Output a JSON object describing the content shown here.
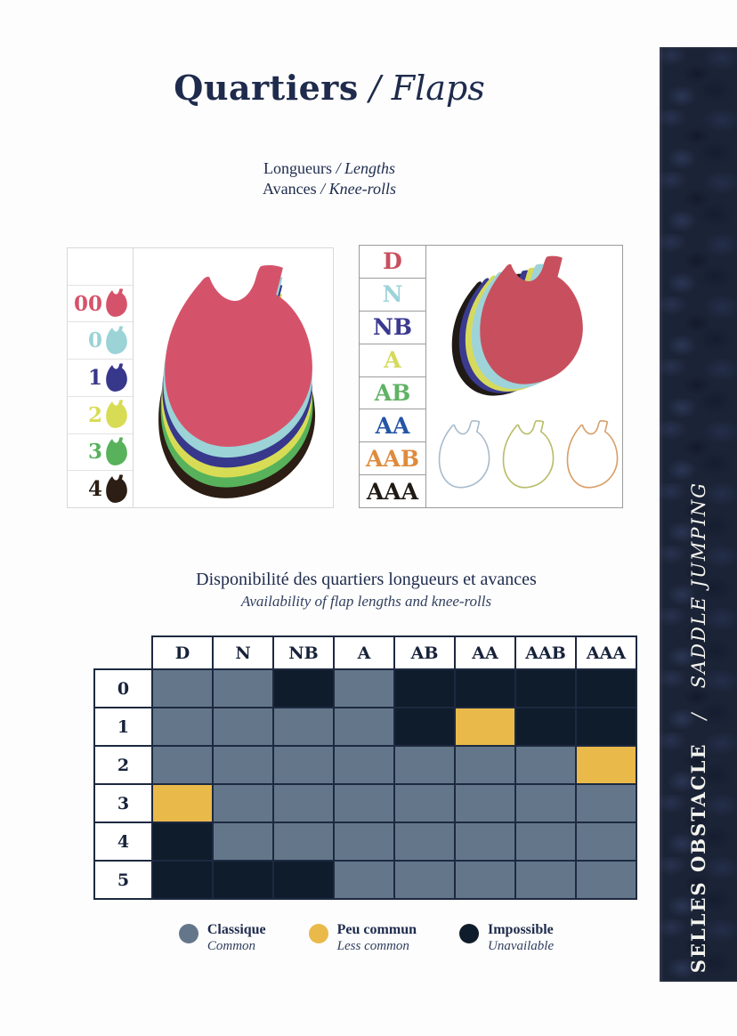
{
  "header": {
    "title_fr": "Quartiers",
    "title_sep": "/",
    "title_en": "Flaps",
    "subtitles": [
      {
        "fr": "Longueurs",
        "sep": "/",
        "en": "Lengths"
      },
      {
        "fr": "Avances",
        "sep": "/",
        "en": "Knee-rolls"
      }
    ]
  },
  "left_diagram": {
    "items": [
      {
        "label": "00",
        "color": "#d5536a"
      },
      {
        "label": "0",
        "color": "#9bd3d6"
      },
      {
        "label": "1",
        "color": "#37378c"
      },
      {
        "label": "2",
        "color": "#d8dc55"
      },
      {
        "label": "3",
        "color": "#57b25b"
      },
      {
        "label": "4",
        "color": "#2c1e14"
      }
    ],
    "stack_colors_bottom_to_top": [
      "#2c1e14",
      "#57b25b",
      "#d8dc55",
      "#37378c",
      "#9bd3d6",
      "#d5536a"
    ]
  },
  "right_diagram": {
    "items": [
      {
        "label": "D",
        "color": "#c8505e"
      },
      {
        "label": "N",
        "color": "#9ed3d9"
      },
      {
        "label": "NB",
        "color": "#3b3a8f"
      },
      {
        "label": "A",
        "color": "#d6da5c"
      },
      {
        "label": "AB",
        "color": "#5fb364"
      },
      {
        "label": "AA",
        "color": "#2455a6"
      },
      {
        "label": "AAB",
        "color": "#de8b3c"
      },
      {
        "label": "AAA",
        "color": "#201a15"
      }
    ],
    "stack_colors_back_to_front": [
      "#201a15",
      "#3b3a8f",
      "#d6da5c",
      "#9ed3d9",
      "#c8505e"
    ],
    "outline_colors": [
      "#a9bccd",
      "#b9bd6a",
      "#d8a06a"
    ]
  },
  "availability": {
    "title_fr": "Disponibilité des quartiers longueurs et avances",
    "title_en": "Availability of flap lengths and knee-rolls",
    "columns": [
      "D",
      "N",
      "NB",
      "A",
      "AB",
      "AA",
      "AAB",
      "AAA"
    ],
    "rows": [
      "0",
      "1",
      "2",
      "3",
      "4",
      "5"
    ],
    "matrix": [
      [
        "common",
        "common",
        "none",
        "common",
        "none",
        "none",
        "none",
        "none"
      ],
      [
        "common",
        "common",
        "common",
        "common",
        "none",
        "less",
        "none",
        "none"
      ],
      [
        "common",
        "common",
        "common",
        "common",
        "common",
        "common",
        "common",
        "less"
      ],
      [
        "less",
        "common",
        "common",
        "common",
        "common",
        "common",
        "common",
        "common"
      ],
      [
        "none",
        "common",
        "common",
        "common",
        "common",
        "common",
        "common",
        "common"
      ],
      [
        "none",
        "none",
        "none",
        "common",
        "common",
        "common",
        "common",
        "common"
      ]
    ],
    "legend": [
      {
        "fr": "Classique",
        "en": "Common",
        "color": "#64778a"
      },
      {
        "fr": "Peu commun",
        "en": "Less common",
        "color": "#e9b94a"
      },
      {
        "fr": "Impossible",
        "en": "Unavailable",
        "color": "#0f1c2b"
      }
    ],
    "cell_colors": {
      "common": "#64778a",
      "less": "#e9b94a",
      "none": "#0f1c2b"
    }
  },
  "sidebar": {
    "text_fr": "SELLES OBSTACLE",
    "sep": "/",
    "text_en": "SADDLE JUMPING",
    "background": "#1b2336"
  }
}
